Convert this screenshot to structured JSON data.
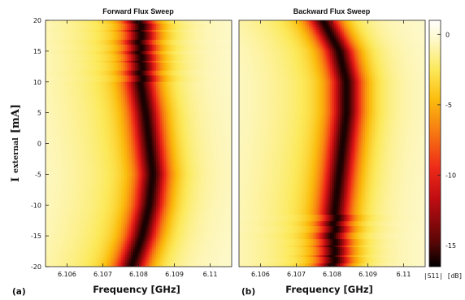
{
  "chart_data": [
    {
      "type": "heatmap",
      "panel_label": "(a)",
      "title": "Forward Flux Sweep",
      "xlabel": "Frequency [GHz]",
      "ylabel_main": "I",
      "ylabel_sub": "external",
      "ylabel_unit": "[mA]",
      "xlim": [
        6.1054,
        6.1106
      ],
      "ylim": [
        -20,
        20
      ],
      "xticks": [
        6.106,
        6.107,
        6.108,
        6.109,
        6.11
      ],
      "xtick_labels": [
        "6.106",
        "6.107",
        "6.108",
        "6.109",
        "6.11"
      ],
      "yticks": [
        -20,
        -15,
        -10,
        -5,
        0,
        5,
        10,
        15,
        20
      ],
      "ytick_labels": [
        "-20",
        "-15",
        "-10",
        "-5",
        "0",
        "5",
        "10",
        "15",
        "20"
      ],
      "resonance_min_db": -15.5,
      "resonance_curve": [
        {
          "I": 20,
          "f": 6.108
        },
        {
          "I": 15,
          "f": 6.108
        },
        {
          "I": 10,
          "f": 6.10805
        },
        {
          "I": 5,
          "f": 6.1082
        },
        {
          "I": 0,
          "f": 6.1083
        },
        {
          "I": -5,
          "f": 6.1084
        },
        {
          "I": -10,
          "f": 6.1083
        },
        {
          "I": -15,
          "f": 6.1081
        },
        {
          "I": -20,
          "f": 6.1078
        }
      ],
      "jumps_at_mA": [
        19,
        17.5,
        15.5,
        14,
        12.5,
        10.5
      ]
    },
    {
      "type": "heatmap",
      "panel_label": "(b)",
      "title": "Backward Flux Sweep",
      "xlabel": "Frequency [GHz]",
      "xlim": [
        6.1054,
        6.1106
      ],
      "ylim": [
        -20,
        20
      ],
      "xticks": [
        6.106,
        6.107,
        6.108,
        6.109,
        6.11
      ],
      "xtick_labels": [
        "6.106",
        "6.107",
        "6.108",
        "6.109",
        "6.11"
      ],
      "resonance_min_db": -15.5,
      "resonance_curve": [
        {
          "I": 20,
          "f": 6.10775
        },
        {
          "I": 15,
          "f": 6.1082
        },
        {
          "I": 10,
          "f": 6.1084
        },
        {
          "I": 5,
          "f": 6.1084
        },
        {
          "I": 0,
          "f": 6.1083
        },
        {
          "I": -5,
          "f": 6.1082
        },
        {
          "I": -10,
          "f": 6.1081
        },
        {
          "I": -15,
          "f": 6.108
        },
        {
          "I": -20,
          "f": 6.108
        }
      ],
      "jumps_at_mA": [
        -12,
        -14,
        -16,
        -17.5,
        -19
      ]
    },
    {
      "type": "colorbar",
      "label": "|S11| [dB]",
      "range": [
        -16.5,
        1
      ],
      "ticks": [
        0,
        -5,
        -10,
        -15
      ],
      "tick_labels": [
        "0",
        "-5",
        "-10",
        "-15"
      ],
      "colors": [
        "#000000",
        "#8b0000",
        "#e8161a",
        "#f68a10",
        "#fce40c",
        "#fdf7b4",
        "#ffffff"
      ]
    }
  ]
}
